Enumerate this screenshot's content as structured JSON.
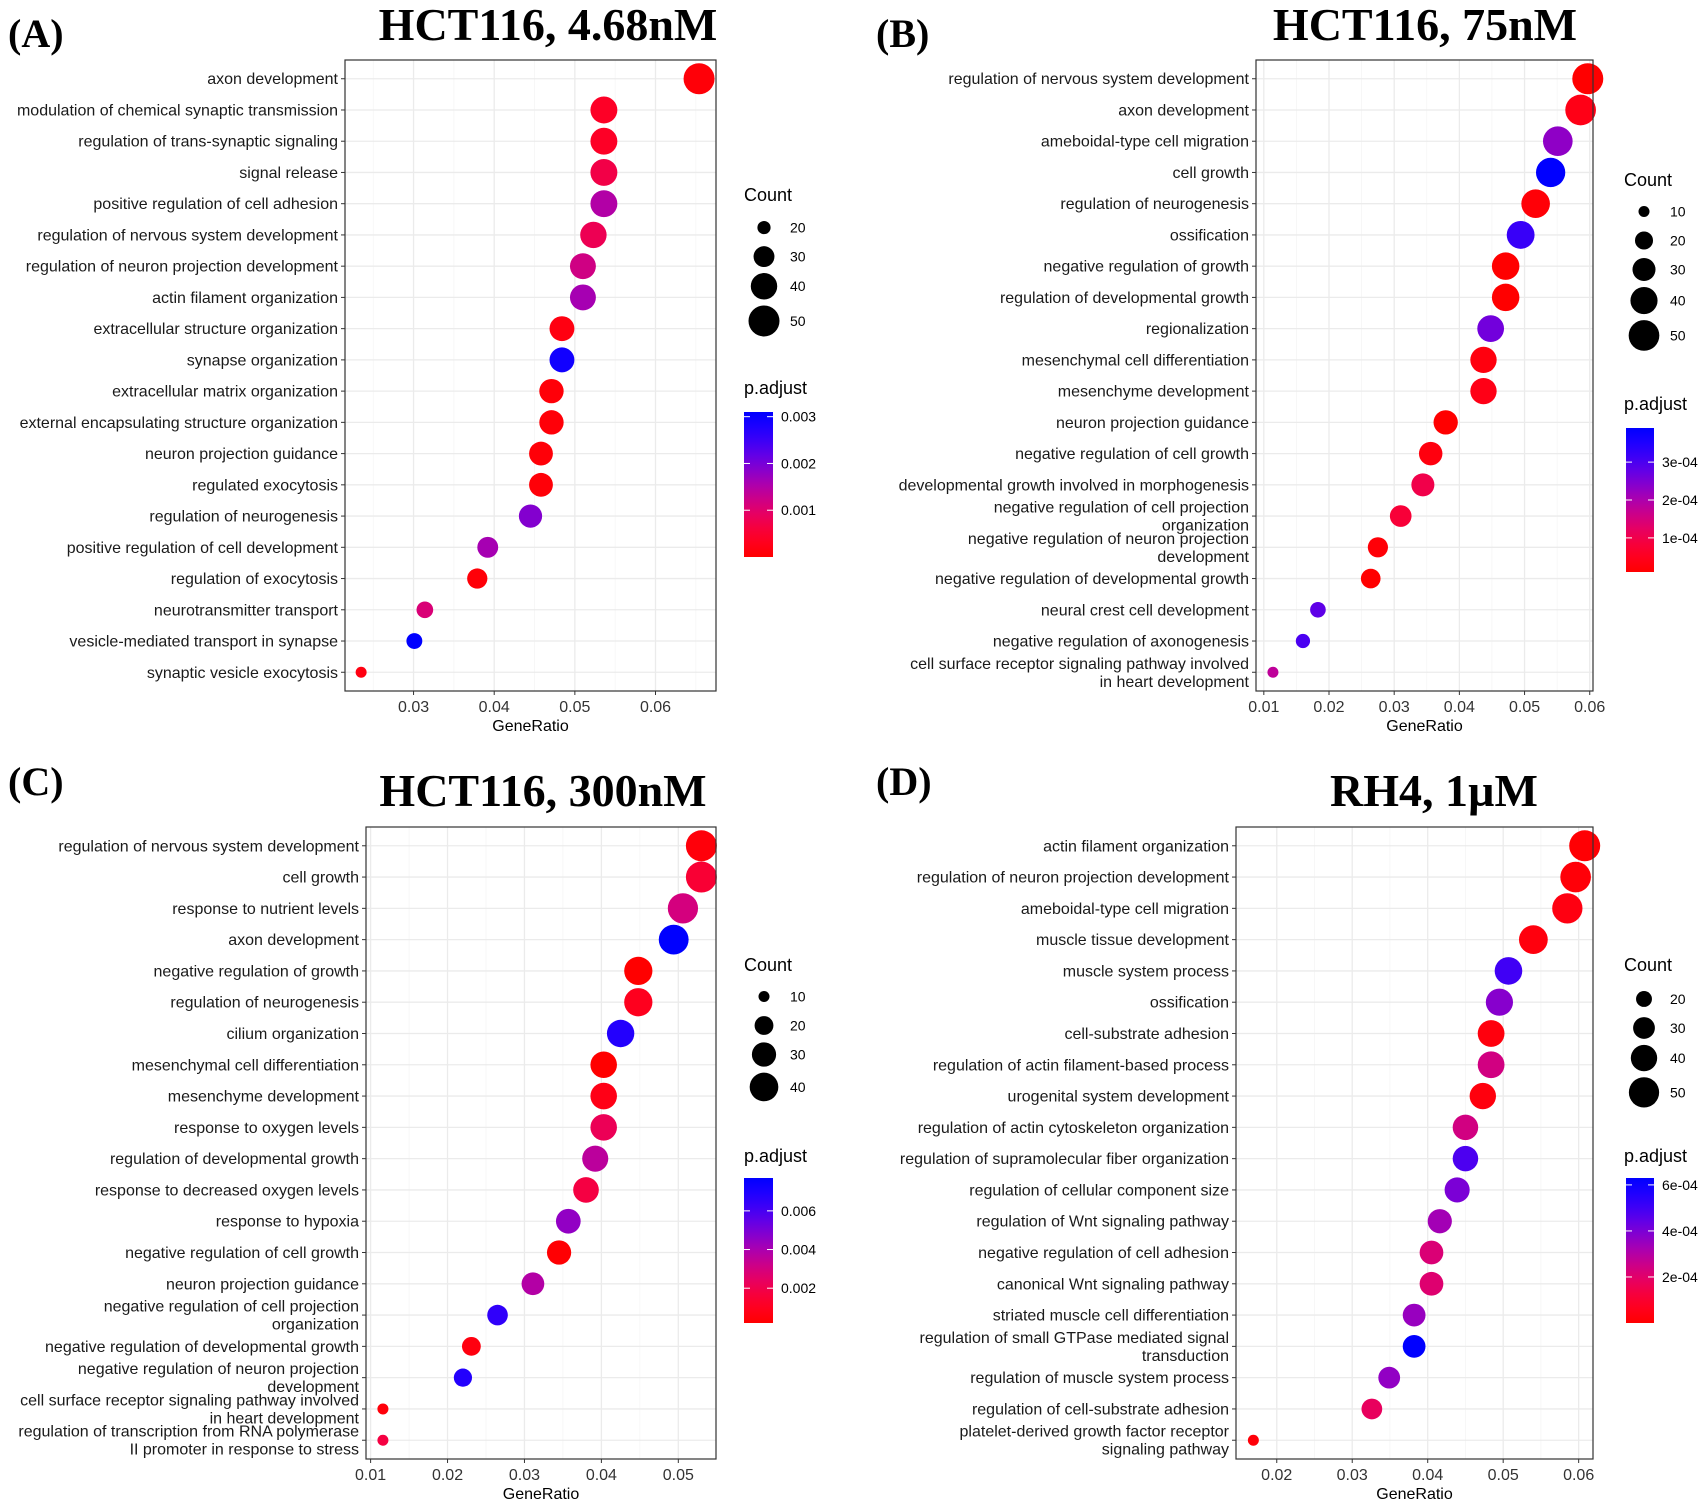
{
  "colors": {
    "low": "#FF0000",
    "high": "#0000FF",
    "grid": "#EBEBEB",
    "border": "#333333"
  },
  "chart_data": [
    {
      "type": "scatter",
      "letter": "(A)",
      "title": "HCT116, 4.68nM",
      "xlabel": "GeneRatio",
      "xticks": [
        0.03,
        0.04,
        0.05,
        0.06
      ],
      "xtick_labels": [
        "0.03",
        "0.04",
        "0.05",
        "0.06"
      ],
      "xlim": [
        0.0215,
        0.0675
      ],
      "grid": true,
      "size_legend": {
        "title": "Count",
        "breaks": [
          20,
          30,
          40,
          50
        ]
      },
      "color_legend": {
        "title": "p.adjust",
        "breaks": [
          0.001,
          0.002,
          0.003
        ],
        "labels": [
          "0.001",
          "0.002",
          "0.003"
        ],
        "limits": [
          0,
          0.0031
        ]
      },
      "terms": [
        "axon development",
        "modulation of chemical synaptic transmission",
        "regulation of trans-synaptic signaling",
        "signal release",
        "positive regulation of cell adhesion",
        "regulation of nervous system development",
        "regulation of neuron projection development",
        "actin filament organization",
        "extracellular structure organization",
        "synapse organization",
        "extracellular matrix organization",
        "external encapsulating structure organization",
        "neuron projection guidance",
        "regulated exocytosis",
        "regulation of neurogenesis",
        "positive regulation of cell development",
        "regulation of exocytosis",
        "neurotransmitter transport",
        "vesicle-mediated transport in synapse",
        "synaptic vesicle exocytosis"
      ],
      "gene_ratio": [
        0.0654,
        0.0536,
        0.0536,
        0.0536,
        0.0536,
        0.0523,
        0.051,
        0.051,
        0.0484,
        0.0484,
        0.0471,
        0.0471,
        0.0458,
        0.0458,
        0.0445,
        0.0392,
        0.0379,
        0.0314,
        0.0301,
        0.0235
      ],
      "count": [
        50,
        41,
        41,
        41,
        41,
        40,
        39,
        39,
        37,
        37,
        36,
        36,
        35,
        35,
        34,
        30,
        29,
        24,
        23,
        18
      ],
      "p_adjust": [
        0.0001,
        0.0004,
        0.0004,
        0.0007,
        0.0015,
        0.0008,
        0.0012,
        0.0016,
        0.0002,
        0.0029,
        0.0001,
        0.0001,
        0.0001,
        0.0001,
        0.0019,
        0.0016,
        0.0001,
        0.0011,
        0.0031,
        0.0002
      ]
    },
    {
      "type": "scatter",
      "letter": "(B)",
      "title": "HCT116, 75nM",
      "xlabel": "GeneRatio",
      "xticks": [
        0.01,
        0.02,
        0.03,
        0.04,
        0.05,
        0.06
      ],
      "xtick_labels": [
        "0.01",
        "0.02",
        "0.03",
        "0.04",
        "0.05",
        "0.06"
      ],
      "xlim": [
        0.0088,
        0.0605
      ],
      "grid": true,
      "size_legend": {
        "title": "Count",
        "breaks": [
          10,
          20,
          30,
          40,
          50
        ]
      },
      "color_legend": {
        "title": "p.adjust",
        "breaks": [
          0.0001,
          0.0002,
          0.0003
        ],
        "labels": [
          "1e-04",
          "2e-04",
          "3e-04"
        ],
        "limits": [
          1e-05,
          0.00039
        ]
      },
      "terms": [
        "regulation of nervous system development",
        "axon development",
        "ameboidal-type cell migration",
        "cell growth",
        "regulation of neurogenesis",
        "ossification",
        "negative regulation of growth",
        "regulation of developmental growth",
        "regionalization",
        "mesenchymal cell differentiation",
        "mesenchyme development",
        "neuron projection guidance",
        "negative regulation of cell growth",
        "developmental growth involved in morphogenesis",
        "negative regulation of cell projection organization",
        "negative regulation of neuron projection development",
        "negative regulation of developmental growth",
        "neural crest cell development",
        "negative regulation of axonogenesis",
        "cell surface receptor signaling pathway involved in heart development"
      ],
      "gene_ratio": [
        0.0597,
        0.0586,
        0.0551,
        0.054,
        0.0517,
        0.0494,
        0.0471,
        0.0471,
        0.0448,
        0.0437,
        0.0437,
        0.0379,
        0.0356,
        0.0344,
        0.031,
        0.0275,
        0.0264,
        0.0183,
        0.016,
        0.0114
      ],
      "count": [
        51,
        50,
        47,
        46,
        44,
        42,
        41,
        41,
        39,
        38,
        38,
        33,
        31,
        30,
        27,
        24,
        23,
        16,
        14,
        10
      ],
      "p_adjust": [
        1e-05,
        4e-05,
        0.00023,
        0.00039,
        2e-05,
        0.00032,
        1e-05,
        1e-05,
        0.00026,
        3e-05,
        4e-05,
        1e-05,
        3e-05,
        0.0001,
        8e-05,
        2e-05,
        1e-05,
        0.00028,
        0.0003,
        0.00018
      ]
    },
    {
      "type": "scatter",
      "letter": "(C)",
      "title": "HCT116, 300nM",
      "xlabel": "GeneRatio",
      "xticks": [
        0.01,
        0.02,
        0.03,
        0.04,
        0.05
      ],
      "xtick_labels": [
        "0.01",
        "0.02",
        "0.03",
        "0.04",
        "0.05"
      ],
      "xlim": [
        0.0094,
        0.0549
      ],
      "grid": true,
      "size_legend": {
        "title": "Count",
        "breaks": [
          10,
          20,
          30,
          40
        ]
      },
      "color_legend": {
        "title": "p.adjust",
        "breaks": [
          0.002,
          0.004,
          0.006
        ],
        "labels": [
          "0.002",
          "0.004",
          "0.006"
        ],
        "limits": [
          0.0002,
          0.0077
        ]
      },
      "terms": [
        "regulation of nervous system development",
        "cell growth",
        "response to nutrient levels",
        "axon development",
        "negative regulation of growth",
        "regulation of neurogenesis",
        "cilium organization",
        "mesenchymal cell differentiation",
        "mesenchyme development",
        "response to oxygen levels",
        "regulation of developmental growth",
        "response to decreased oxygen levels",
        "response to hypoxia",
        "negative regulation of cell growth",
        "neuron projection guidance",
        "negative regulation of cell projection organization",
        "negative regulation of developmental growth",
        "negative regulation of neuron projection development",
        "cell surface receptor signaling pathway involved in heart development",
        "regulation of transcription from RNA polymerase II promoter in response to stress"
      ],
      "gene_ratio": [
        0.053,
        0.053,
        0.0506,
        0.0494,
        0.0448,
        0.0448,
        0.0425,
        0.0403,
        0.0403,
        0.0403,
        0.0392,
        0.038,
        0.0357,
        0.0345,
        0.0311,
        0.0265,
        0.0231,
        0.022,
        0.0116,
        0.0116
      ],
      "count": [
        46,
        46,
        44,
        43,
        39,
        39,
        37,
        35,
        35,
        35,
        34,
        33,
        31,
        30,
        27,
        23,
        20,
        19,
        10,
        10
      ],
      "p_adjust": [
        0.0005,
        0.0015,
        0.003,
        0.0077,
        0.0002,
        0.001,
        0.0068,
        0.0002,
        0.0008,
        0.0022,
        0.0036,
        0.0018,
        0.0045,
        0.0003,
        0.0038,
        0.0065,
        0.0006,
        0.0068,
        0.0005,
        0.0018
      ]
    },
    {
      "type": "scatter",
      "letter": "(D)",
      "title": "RH4, 1µM",
      "xlabel": "GeneRatio",
      "xticks": [
        0.02,
        0.03,
        0.04,
        0.05,
        0.06
      ],
      "xtick_labels": [
        "0.02",
        "0.03",
        "0.04",
        "0.05",
        "0.06"
      ],
      "xlim": [
        0.0146,
        0.0619
      ],
      "grid": true,
      "size_legend": {
        "title": "Count",
        "breaks": [
          20,
          30,
          40,
          50
        ]
      },
      "color_legend": {
        "title": "p.adjust",
        "breaks": [
          0.0002,
          0.0004,
          0.0006
        ],
        "labels": [
          "2e-04",
          "4e-04",
          "6e-04"
        ],
        "limits": [
          0,
          0.00063
        ]
      },
      "terms": [
        "actin filament organization",
        "regulation of neuron projection development",
        "ameboidal-type cell migration",
        "muscle tissue development",
        "muscle system process",
        "ossification",
        "cell-substrate adhesion",
        "regulation of actin filament-based process",
        "urogenital system development",
        "regulation of actin cytoskeleton organization",
        "regulation of supramolecular fiber organization",
        "regulation of cellular component size",
        "regulation of Wnt signaling pathway",
        "negative regulation of cell adhesion",
        "canonical Wnt signaling pathway",
        "striated muscle cell differentiation",
        "regulation of small GTPase mediated signal transduction",
        "regulation of muscle system process",
        "regulation of cell-substrate adhesion",
        "platelet-derived growth factor receptor signaling pathway"
      ],
      "gene_ratio": [
        0.0608,
        0.0596,
        0.0585,
        0.054,
        0.0507,
        0.0495,
        0.0484,
        0.0484,
        0.0473,
        0.045,
        0.045,
        0.0439,
        0.0416,
        0.0405,
        0.0405,
        0.0382,
        0.0382,
        0.0349,
        0.0326,
        0.0169
      ],
      "count": [
        52,
        51,
        50,
        46,
        43,
        42,
        41,
        41,
        40,
        38,
        38,
        37,
        35,
        34,
        34,
        32,
        32,
        30,
        28,
        14
      ],
      "p_adjust": [
        1e-05,
        2e-05,
        4e-05,
        3e-05,
        0.0005,
        0.00038,
        3e-05,
        0.00024,
        3e-05,
        0.00024,
        0.00048,
        0.0004,
        0.00033,
        0.00022,
        0.00021,
        0.00035,
        0.00063,
        0.00036,
        0.00018,
        2e-05
      ]
    }
  ]
}
